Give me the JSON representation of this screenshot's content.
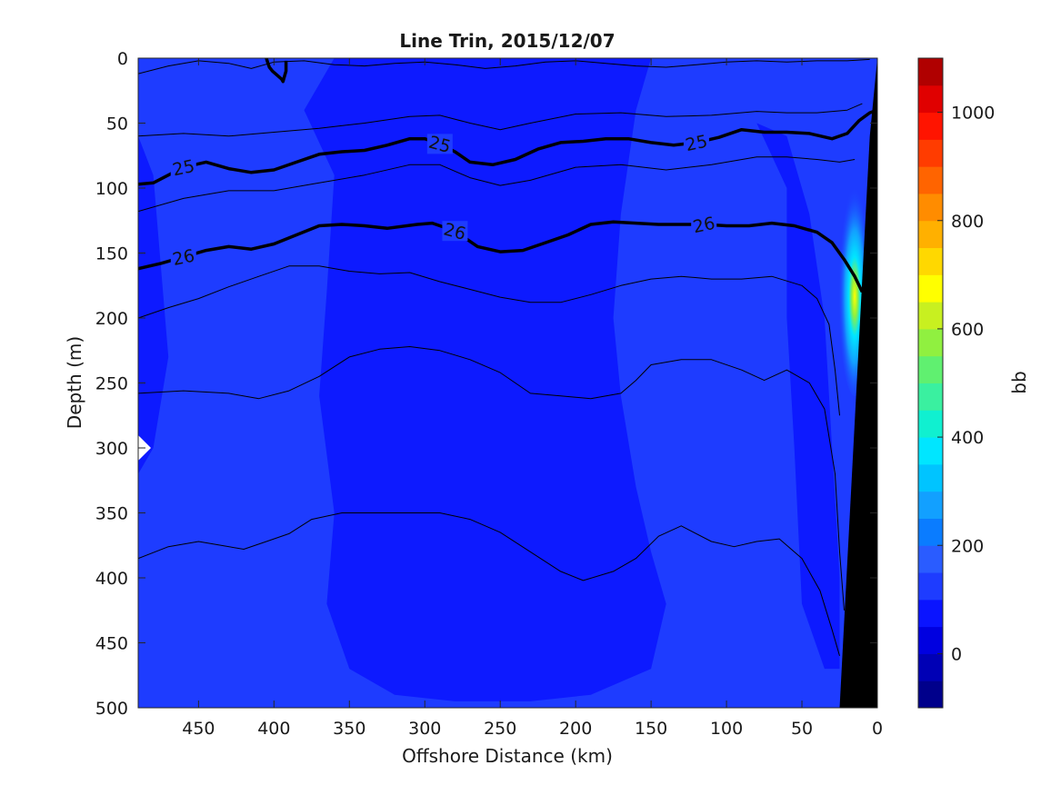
{
  "chart_data": {
    "type": "heatmap",
    "title": "Line Trin, 2015/12/07",
    "xlabel": "Offshore Distance (km)",
    "ylabel": "Depth (m)",
    "xlim": [
      490,
      0
    ],
    "ylim": [
      0,
      500
    ],
    "x_reversed": true,
    "y_reversed": true,
    "xticks": [
      450,
      400,
      350,
      300,
      250,
      200,
      150,
      100,
      50,
      0
    ],
    "yticks": [
      0,
      50,
      100,
      150,
      200,
      250,
      300,
      350,
      400,
      450,
      500
    ],
    "colorbar": {
      "label": "bb",
      "range": [
        -100,
        1100
      ],
      "ticks": [
        0,
        200,
        400,
        600,
        800,
        1000
      ],
      "levels": [
        -100,
        -50,
        0,
        50,
        100,
        150,
        200,
        250,
        300,
        350,
        400,
        450,
        500,
        550,
        600,
        650,
        700,
        750,
        800,
        850,
        900,
        950,
        1000,
        1050,
        1100
      ],
      "colors": [
        "#00008b",
        "#0000b5",
        "#0000e0",
        "#0a14ff",
        "#1e3cff",
        "#2a5cff",
        "#0a7cff",
        "#12a0ff",
        "#00c4ff",
        "#00e6ff",
        "#10f0d0",
        "#3af0a0",
        "#60f070",
        "#90f040",
        "#c8f020",
        "#ffff00",
        "#ffd800",
        "#ffb000",
        "#ff8c00",
        "#ff6400",
        "#ff3c00",
        "#ff1400",
        "#e00000",
        "#b00000"
      ]
    },
    "background_value_range": [
      50,
      100
    ],
    "isopycnals": [
      {
        "label": "25",
        "weight": "bold",
        "points": [
          [
            490,
            97
          ],
          [
            480,
            96
          ],
          [
            470,
            90
          ],
          [
            460,
            84
          ],
          [
            445,
            80
          ],
          [
            430,
            85
          ],
          [
            415,
            88
          ],
          [
            400,
            86
          ],
          [
            385,
            80
          ],
          [
            370,
            74
          ],
          [
            355,
            72
          ],
          [
            340,
            71
          ],
          [
            325,
            67
          ],
          [
            310,
            62
          ],
          [
            300,
            62
          ],
          [
            290,
            66
          ],
          [
            280,
            72
          ],
          [
            270,
            80
          ],
          [
            255,
            82
          ],
          [
            240,
            78
          ],
          [
            225,
            70
          ],
          [
            210,
            65
          ],
          [
            195,
            64
          ],
          [
            180,
            62
          ],
          [
            165,
            62
          ],
          [
            150,
            65
          ],
          [
            135,
            67
          ],
          [
            120,
            65
          ],
          [
            105,
            61
          ],
          [
            90,
            55
          ],
          [
            75,
            57
          ],
          [
            60,
            57
          ],
          [
            45,
            58
          ],
          [
            30,
            62
          ],
          [
            20,
            58
          ],
          [
            12,
            48
          ],
          [
            5,
            42
          ],
          [
            0,
            40
          ]
        ]
      },
      {
        "label": "26",
        "weight": "bold",
        "points": [
          [
            490,
            162
          ],
          [
            475,
            158
          ],
          [
            460,
            153
          ],
          [
            445,
            148
          ],
          [
            430,
            145
          ],
          [
            415,
            147
          ],
          [
            400,
            143
          ],
          [
            385,
            136
          ],
          [
            370,
            129
          ],
          [
            355,
            128
          ],
          [
            340,
            129
          ],
          [
            325,
            131
          ],
          [
            305,
            128
          ],
          [
            295,
            127
          ],
          [
            280,
            133
          ],
          [
            265,
            145
          ],
          [
            250,
            149
          ],
          [
            235,
            148
          ],
          [
            220,
            142
          ],
          [
            205,
            136
          ],
          [
            190,
            128
          ],
          [
            175,
            126
          ],
          [
            160,
            127
          ],
          [
            145,
            128
          ],
          [
            130,
            128
          ],
          [
            115,
            128
          ],
          [
            100,
            129
          ],
          [
            85,
            129
          ],
          [
            70,
            127
          ],
          [
            55,
            129
          ],
          [
            40,
            134
          ],
          [
            30,
            142
          ],
          [
            22,
            155
          ],
          [
            15,
            168
          ],
          [
            10,
            180
          ]
        ]
      },
      {
        "label": "",
        "weight": "thin",
        "points": [
          [
            490,
            60
          ],
          [
            460,
            58
          ],
          [
            430,
            60
          ],
          [
            400,
            57
          ],
          [
            370,
            54
          ],
          [
            340,
            50
          ],
          [
            310,
            45
          ],
          [
            290,
            44
          ],
          [
            270,
            50
          ],
          [
            250,
            55
          ],
          [
            230,
            50
          ],
          [
            200,
            43
          ],
          [
            170,
            42
          ],
          [
            140,
            45
          ],
          [
            110,
            44
          ],
          [
            80,
            41
          ],
          [
            60,
            42
          ],
          [
            40,
            42
          ],
          [
            20,
            40
          ],
          [
            10,
            35
          ]
        ]
      },
      {
        "label": "",
        "weight": "thin",
        "points": [
          [
            490,
            118
          ],
          [
            460,
            108
          ],
          [
            430,
            102
          ],
          [
            400,
            102
          ],
          [
            370,
            96
          ],
          [
            340,
            90
          ],
          [
            310,
            82
          ],
          [
            290,
            82
          ],
          [
            270,
            92
          ],
          [
            250,
            98
          ],
          [
            230,
            94
          ],
          [
            200,
            84
          ],
          [
            170,
            82
          ],
          [
            140,
            86
          ],
          [
            110,
            82
          ],
          [
            80,
            76
          ],
          [
            60,
            76
          ],
          [
            40,
            78
          ],
          [
            25,
            80
          ],
          [
            15,
            78
          ]
        ]
      },
      {
        "label": "",
        "weight": "thin",
        "points": [
          [
            490,
            200
          ],
          [
            470,
            192
          ],
          [
            450,
            185
          ],
          [
            430,
            176
          ],
          [
            410,
            168
          ],
          [
            390,
            160
          ],
          [
            370,
            160
          ],
          [
            350,
            164
          ],
          [
            330,
            166
          ],
          [
            310,
            165
          ],
          [
            290,
            172
          ],
          [
            270,
            178
          ],
          [
            250,
            184
          ],
          [
            230,
            188
          ],
          [
            210,
            188
          ],
          [
            190,
            182
          ],
          [
            170,
            175
          ],
          [
            150,
            170
          ],
          [
            130,
            168
          ],
          [
            110,
            170
          ],
          [
            90,
            170
          ],
          [
            70,
            168
          ],
          [
            50,
            175
          ],
          [
            40,
            185
          ],
          [
            32,
            205
          ],
          [
            28,
            240
          ],
          [
            25,
            275
          ]
        ]
      },
      {
        "label": "",
        "weight": "thin",
        "points": [
          [
            490,
            258
          ],
          [
            460,
            256
          ],
          [
            430,
            258
          ],
          [
            410,
            262
          ],
          [
            390,
            256
          ],
          [
            370,
            245
          ],
          [
            350,
            230
          ],
          [
            330,
            224
          ],
          [
            310,
            222
          ],
          [
            290,
            225
          ],
          [
            270,
            232
          ],
          [
            250,
            242
          ],
          [
            230,
            258
          ],
          [
            210,
            260
          ],
          [
            190,
            262
          ],
          [
            170,
            258
          ],
          [
            160,
            248
          ],
          [
            150,
            236
          ],
          [
            130,
            232
          ],
          [
            110,
            232
          ],
          [
            90,
            240
          ],
          [
            75,
            248
          ],
          [
            60,
            240
          ],
          [
            45,
            250
          ],
          [
            35,
            270
          ],
          [
            28,
            320
          ],
          [
            25,
            380
          ],
          [
            22,
            425
          ]
        ]
      },
      {
        "label": "",
        "weight": "thin",
        "points": [
          [
            490,
            385
          ],
          [
            470,
            376
          ],
          [
            450,
            372
          ],
          [
            435,
            375
          ],
          [
            420,
            378
          ],
          [
            405,
            372
          ],
          [
            390,
            366
          ],
          [
            375,
            355
          ],
          [
            355,
            350
          ],
          [
            335,
            350
          ],
          [
            310,
            350
          ],
          [
            290,
            350
          ],
          [
            270,
            355
          ],
          [
            250,
            365
          ],
          [
            230,
            380
          ],
          [
            210,
            395
          ],
          [
            195,
            402
          ],
          [
            175,
            395
          ],
          [
            160,
            385
          ],
          [
            145,
            368
          ],
          [
            130,
            360
          ],
          [
            110,
            372
          ],
          [
            95,
            376
          ],
          [
            80,
            372
          ],
          [
            65,
            370
          ],
          [
            50,
            385
          ],
          [
            38,
            410
          ],
          [
            30,
            440
          ],
          [
            25,
            460
          ]
        ]
      },
      {
        "label": "",
        "weight": "thin",
        "points": [
          [
            490,
            12
          ],
          [
            470,
            6
          ],
          [
            450,
            2
          ],
          [
            430,
            4
          ],
          [
            415,
            8
          ],
          [
            400,
            3
          ],
          [
            380,
            2
          ],
          [
            360,
            5
          ],
          [
            340,
            6
          ],
          [
            320,
            4
          ],
          [
            300,
            3
          ],
          [
            280,
            5
          ],
          [
            260,
            8
          ],
          [
            240,
            6
          ],
          [
            220,
            3
          ],
          [
            200,
            2
          ],
          [
            180,
            4
          ],
          [
            160,
            6
          ],
          [
            140,
            7
          ],
          [
            120,
            5
          ],
          [
            100,
            3
          ],
          [
            80,
            2
          ],
          [
            60,
            3
          ],
          [
            40,
            2
          ],
          [
            20,
            2
          ],
          [
            5,
            1
          ]
        ]
      },
      {
        "label": "",
        "weight": "bold",
        "points": [
          [
            405,
            0
          ],
          [
            404,
            4
          ],
          [
            403,
            7
          ],
          [
            401,
            10
          ],
          [
            398,
            13
          ],
          [
            395,
            16
          ],
          [
            394,
            18
          ],
          [
            393,
            14
          ],
          [
            392,
            10
          ],
          [
            392,
            6
          ],
          [
            392,
            2
          ]
        ]
      }
    ],
    "dark_patches": [
      [
        [
          380,
          40
        ],
        [
          360,
          90
        ],
        [
          365,
          180
        ],
        [
          370,
          260
        ],
        [
          360,
          350
        ],
        [
          365,
          420
        ],
        [
          350,
          470
        ],
        [
          320,
          490
        ],
        [
          280,
          495
        ],
        [
          230,
          495
        ],
        [
          190,
          490
        ],
        [
          150,
          470
        ],
        [
          140,
          420
        ],
        [
          150,
          380
        ],
        [
          160,
          330
        ],
        [
          170,
          260
        ],
        [
          175,
          200
        ],
        [
          170,
          120
        ],
        [
          160,
          40
        ],
        [
          150,
          0
        ],
        [
          300,
          0
        ],
        [
          360,
          0
        ]
      ],
      [
        [
          80,
          50
        ],
        [
          60,
          100
        ],
        [
          60,
          200
        ],
        [
          55,
          300
        ],
        [
          50,
          420
        ],
        [
          35,
          470
        ],
        [
          25,
          470
        ],
        [
          25,
          400
        ],
        [
          30,
          300
        ],
        [
          35,
          200
        ],
        [
          45,
          120
        ],
        [
          60,
          60
        ]
      ],
      [
        [
          490,
          60
        ],
        [
          480,
          90
        ],
        [
          475,
          160
        ],
        [
          470,
          230
        ],
        [
          480,
          300
        ],
        [
          490,
          320
        ]
      ]
    ],
    "bright_patch": {
      "center_km": 15,
      "depth_range": [
        90,
        260
      ],
      "peak_value": 650,
      "peak_depth": 165
    },
    "bathymetry": [
      [
        0,
        0
      ],
      [
        0,
        500
      ],
      [
        25,
        500
      ],
      [
        5,
        60
      ]
    ],
    "missing_marker": {
      "distance_km": 490,
      "depth_m": 300
    }
  }
}
